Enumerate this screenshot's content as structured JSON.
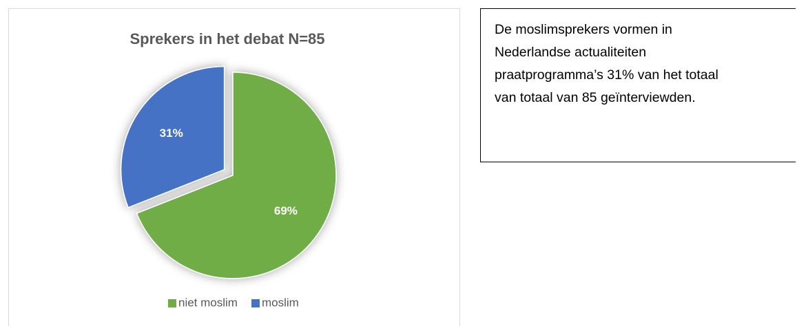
{
  "chart_data": {
    "type": "pie",
    "title": "Sprekers in het debat N=85",
    "categories": [
      "niet moslim",
      "moslim"
    ],
    "values": [
      69,
      31
    ],
    "value_labels": [
      "69%",
      "31%"
    ],
    "colors": [
      "#70ad47",
      "#4472c4"
    ],
    "exploded": [
      false,
      true
    ],
    "legend": "bottom"
  },
  "text_box": {
    "text": "De moslimsprekers vormen in Nederlandse actualiteiten praatprogramma’s 31% van het totaal van totaal van 85 geïnterviewden."
  }
}
